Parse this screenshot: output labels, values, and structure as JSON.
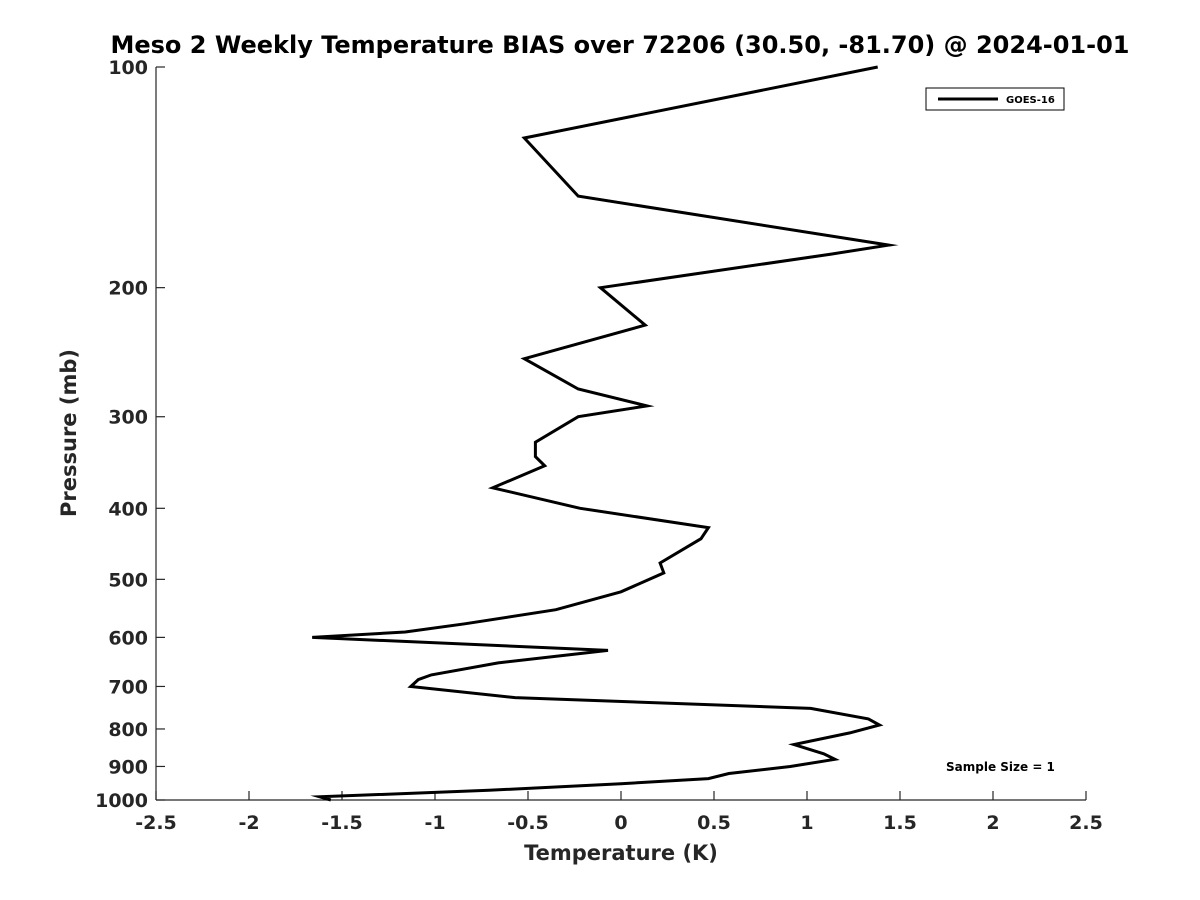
{
  "chart_data": {
    "type": "line",
    "title": "Meso 2 Weekly Temperature BIAS over 72206 (30.50, -81.70) @ 2024-01-01",
    "xlabel": "Temperature (K)",
    "ylabel": "Pressure (mb)",
    "xlim": [
      -2.5,
      2.5
    ],
    "ylim": [
      1000,
      100
    ],
    "yscale": "log",
    "y_reversed": true,
    "grid": false,
    "legend_position": "top-right",
    "x_ticks": [
      "-2.5",
      "-2",
      "-1.5",
      "-1",
      "-0.5",
      "0",
      "0.5",
      "1",
      "1.5",
      "2",
      "2.5"
    ],
    "x_tick_values": [
      -2.5,
      -2,
      -1.5,
      -1,
      -0.5,
      0,
      0.5,
      1,
      1.5,
      2,
      2.5
    ],
    "y_ticks": [
      "100",
      "200",
      "300",
      "400",
      "500",
      "600",
      "700",
      "800",
      "900",
      "1000"
    ],
    "y_tick_values": [
      100,
      200,
      300,
      400,
      500,
      600,
      700,
      800,
      900,
      1000
    ],
    "series": [
      {
        "name": "GOES-16",
        "color": "#000000",
        "points": [
          [
            1.38,
            100
          ],
          [
            -0.52,
            125
          ],
          [
            -0.23,
            150
          ],
          [
            1.44,
            175
          ],
          [
            1.13,
            180
          ],
          [
            -0.11,
            200
          ],
          [
            0.13,
            225
          ],
          [
            -0.52,
            250
          ],
          [
            -0.23,
            275
          ],
          [
            0.14,
            290
          ],
          [
            -0.23,
            300
          ],
          [
            -0.46,
            325
          ],
          [
            -0.46,
            340
          ],
          [
            -0.41,
            350
          ],
          [
            -0.69,
            375
          ],
          [
            -0.22,
            400
          ],
          [
            0.47,
            425
          ],
          [
            0.43,
            440
          ],
          [
            0.21,
            475
          ],
          [
            0.23,
            490
          ],
          [
            0.0,
            520
          ],
          [
            -0.35,
            550
          ],
          [
            -0.84,
            575
          ],
          [
            -1.16,
            590
          ],
          [
            -1.66,
            600
          ],
          [
            -0.07,
            625
          ],
          [
            -0.66,
            650
          ],
          [
            -1.02,
            675
          ],
          [
            -1.09,
            685
          ],
          [
            -1.13,
            700
          ],
          [
            -0.57,
            725
          ],
          [
            1.02,
            750
          ],
          [
            1.33,
            775
          ],
          [
            1.39,
            790
          ],
          [
            1.23,
            810
          ],
          [
            0.93,
            840
          ],
          [
            1.09,
            865
          ],
          [
            1.15,
            880
          ],
          [
            0.91,
            900
          ],
          [
            0.58,
            920
          ],
          [
            0.47,
            935
          ],
          [
            0.0,
            950
          ],
          [
            -0.71,
            970
          ],
          [
            -1.62,
            990
          ],
          [
            -1.56,
            1000
          ]
        ]
      }
    ],
    "annotations": [
      {
        "text": "Sample Size = 1"
      }
    ]
  }
}
